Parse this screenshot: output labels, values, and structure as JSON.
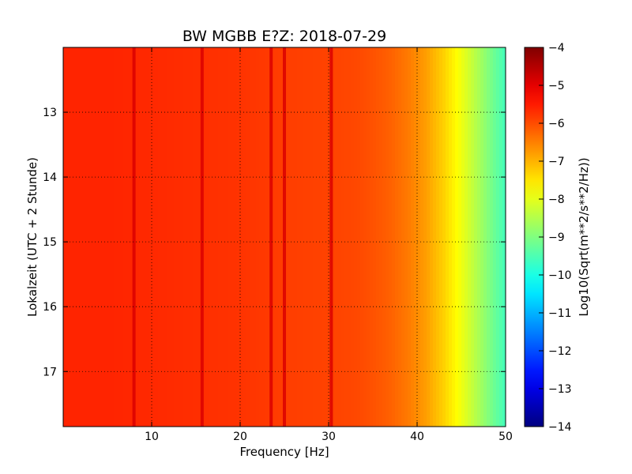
{
  "chart_data": {
    "type": "heatmap",
    "title": "BW MGBB E?Z: 2018-07-29",
    "xlabel": "Frequency [Hz]",
    "ylabel": "Lokalzeit (UTC + 2 Stunde)",
    "xlim": [
      0,
      50
    ],
    "ylim": [
      12.0,
      17.85
    ],
    "y_inverted": true,
    "x_ticks": [
      10,
      20,
      30,
      40,
      50
    ],
    "y_ticks": [
      13,
      14,
      15,
      16,
      17
    ],
    "grid": true,
    "colormap": "jet",
    "colorbar": {
      "label": "Log10(Sqrt(m**2/s**2/Hz))",
      "range": [
        -14,
        -4
      ],
      "ticks": [
        -4,
        -5,
        -6,
        -7,
        -8,
        -9,
        -10,
        -11,
        -12,
        -13,
        -14
      ]
    },
    "frequency_profile": {
      "frequency_hz": [
        0,
        5,
        10,
        15,
        20,
        25,
        30,
        33,
        35,
        37,
        39,
        41,
        43,
        45,
        47,
        49,
        50
      ],
      "log_amplitude": [
        -5.6,
        -5.6,
        -5.65,
        -5.7,
        -5.75,
        -5.85,
        -5.9,
        -5.95,
        -6.05,
        -6.2,
        -6.45,
        -6.8,
        -7.3,
        -7.9,
        -8.6,
        -9.3,
        -9.6
      ]
    },
    "spectral_lines_hz": [
      8.0,
      15.7,
      23.5,
      25.0,
      30.3
    ],
    "spectral_line_amplitude": -4.9
  }
}
